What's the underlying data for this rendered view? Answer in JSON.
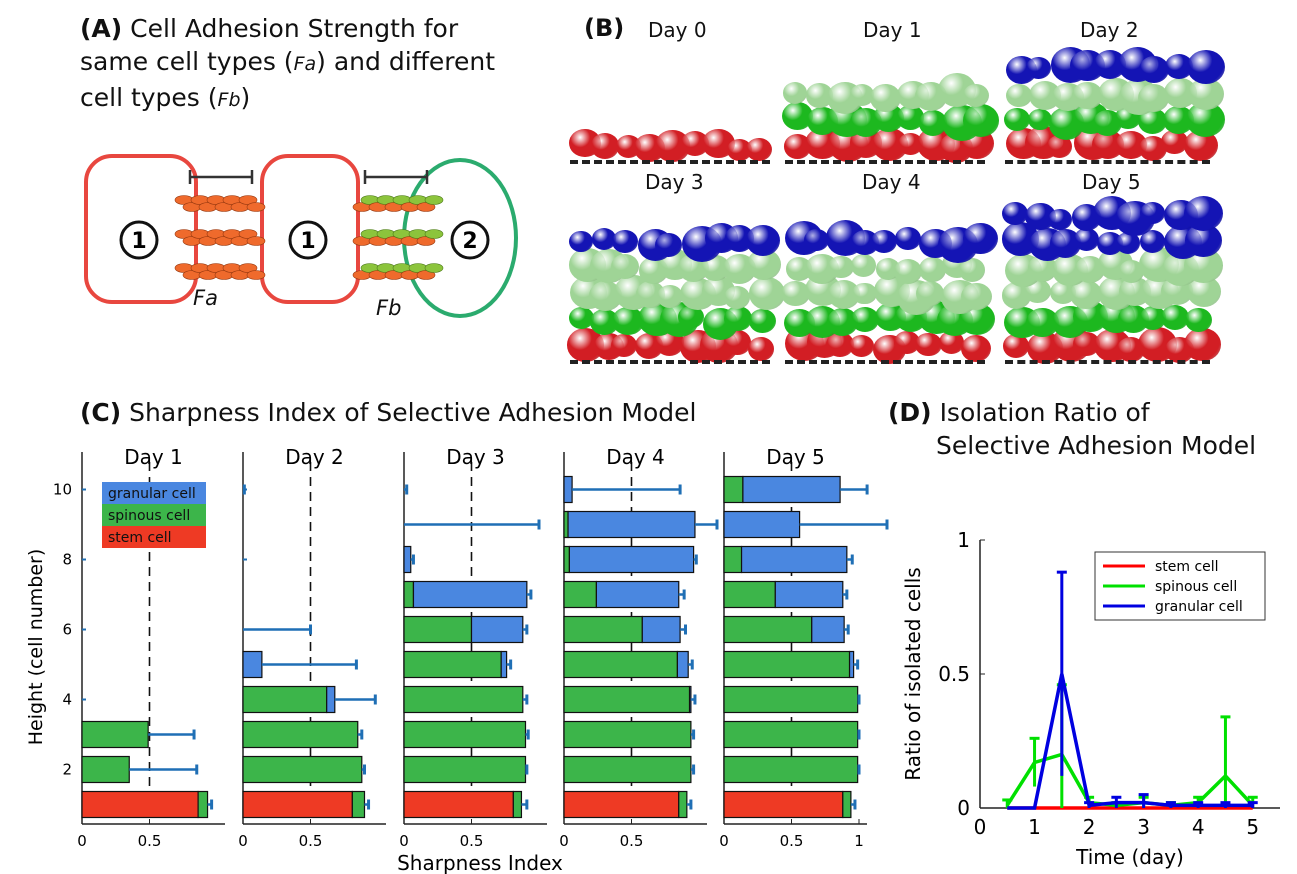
{
  "panel_a": {
    "title_bold": "(A)",
    "title_line1": "Cell Adhesion Strength for",
    "title_line2": "same cell types (",
    "fa_sym": "Fa",
    "title_line2b": ") and different",
    "title_line3": "cell types (",
    "fb_sym": "Fb",
    "title_line3b": ")",
    "cell1": "1",
    "cell2": "2",
    "label_fa": "Fa",
    "label_fb": "Fb",
    "colors": {
      "same": "#e8473f",
      "diff": "#2bab6e",
      "adh_a": "#ef6a2c",
      "adh_b": "#8cc43c"
    }
  },
  "panel_b": {
    "label": "(B)",
    "days": [
      "Day 0",
      "Day 1",
      "Day 2",
      "Day 3",
      "Day 4",
      "Day 5"
    ],
    "colors": {
      "stem": "#d21e24",
      "spinous": "#1db81f",
      "spinous_light": "#9fd496",
      "granular": "#1414b4"
    }
  },
  "panel_c": {
    "title_bold": "(C)",
    "title": "Sharpness Index of Selective Adhesion Model",
    "ylabel": "Height (cell number)",
    "xlabel": "Sharpness Index",
    "legend": [
      "granular cell",
      "spinous cell",
      "stem cell"
    ]
  },
  "panel_d": {
    "title_bold": "(D)",
    "title_line1": "Isolation Ratio of",
    "title_line2": "Selective Adhesion Model"
  },
  "chart_data": [
    {
      "type": "bar",
      "orientation": "horizontal-stacked",
      "title": "",
      "xlabel": "Sharpness Index",
      "ylabel": "Height (cell number)",
      "xlim": [
        0,
        1
      ],
      "ylim": [
        0.5,
        10.5
      ],
      "xticks": [
        "0",
        "0.5",
        "1"
      ],
      "yticks": [
        "2",
        "4",
        "6",
        "8",
        "10"
      ],
      "reference_line": 0.5,
      "colors": {
        "stem": "#ee3a24",
        "spinous": "#3cb54a",
        "granular": "#4a87e0",
        "err": "#1f6fb5"
      },
      "facets": [
        {
          "name": "Day 1",
          "bars": [
            {
              "h": 1,
              "stem": 0.86,
              "spinous": 0.07,
              "granular": 0,
              "err": 0.03
            },
            {
              "h": 2,
              "stem": 0,
              "spinous": 0.35,
              "granular": 0,
              "err": 0.5
            },
            {
              "h": 3,
              "stem": 0,
              "spinous": 0.49,
              "granular": 0,
              "err": 0.34
            }
          ]
        },
        {
          "name": "Day 2",
          "bars": [
            {
              "h": 1,
              "stem": 0.81,
              "spinous": 0.09,
              "granular": 0,
              "err": 0.03
            },
            {
              "h": 2,
              "stem": 0,
              "spinous": 0.88,
              "granular": 0,
              "err": 0.02
            },
            {
              "h": 3,
              "stem": 0,
              "spinous": 0.85,
              "granular": 0,
              "err": 0.03
            },
            {
              "h": 4,
              "stem": 0,
              "spinous": 0.62,
              "granular": 0.06,
              "err": 0.3
            },
            {
              "h": 5,
              "stem": 0,
              "spinous": 0,
              "granular": 0.14,
              "err": 0.7
            },
            {
              "h": 6,
              "stem": 0,
              "spinous": 0,
              "granular": 0,
              "err": 0.5
            },
            {
              "h": 10,
              "stem": 0,
              "spinous": 0,
              "granular": 0,
              "err": 0.01
            }
          ]
        },
        {
          "name": "Day 3",
          "bars": [
            {
              "h": 1,
              "stem": 0.81,
              "spinous": 0.06,
              "granular": 0,
              "err": 0.04
            },
            {
              "h": 2,
              "stem": 0,
              "spinous": 0.9,
              "granular": 0,
              "err": 0.01
            },
            {
              "h": 3,
              "stem": 0,
              "spinous": 0.9,
              "granular": 0,
              "err": 0.02
            },
            {
              "h": 4,
              "stem": 0,
              "spinous": 0.88,
              "granular": 0,
              "err": 0.03
            },
            {
              "h": 5,
              "stem": 0,
              "spinous": 0.72,
              "granular": 0.04,
              "err": 0.03
            },
            {
              "h": 6,
              "stem": 0,
              "spinous": 0.5,
              "granular": 0.38,
              "err": 0.03
            },
            {
              "h": 7,
              "stem": 0,
              "spinous": 0.07,
              "granular": 0.84,
              "err": 0.03
            },
            {
              "h": 8,
              "stem": 0,
              "spinous": 0,
              "granular": 0.05,
              "err": 0.02
            },
            {
              "h": 9,
              "stem": 0,
              "spinous": 0,
              "granular": 0,
              "err": 1.0
            },
            {
              "h": 10,
              "stem": 0,
              "spinous": 0,
              "granular": 0,
              "err": 0.02
            }
          ]
        },
        {
          "name": "Day 4",
          "bars": [
            {
              "h": 1,
              "stem": 0.85,
              "spinous": 0.06,
              "granular": 0,
              "err": 0.03
            },
            {
              "h": 2,
              "stem": 0,
              "spinous": 0.94,
              "granular": 0,
              "err": 0.02
            },
            {
              "h": 3,
              "stem": 0,
              "spinous": 0.94,
              "granular": 0,
              "err": 0.02
            },
            {
              "h": 4,
              "stem": 0,
              "spinous": 0.93,
              "granular": 0.01,
              "err": 0.03
            },
            {
              "h": 5,
              "stem": 0,
              "spinous": 0.84,
              "granular": 0.08,
              "err": 0.03
            },
            {
              "h": 6,
              "stem": 0,
              "spinous": 0.58,
              "granular": 0.28,
              "err": 0.04
            },
            {
              "h": 7,
              "stem": 0,
              "spinous": 0.24,
              "granular": 0.61,
              "err": 0.04
            },
            {
              "h": 8,
              "stem": 0,
              "spinous": 0.04,
              "granular": 0.92,
              "err": 0.02
            },
            {
              "h": 9,
              "stem": 0,
              "spinous": 0.03,
              "granular": 0.94,
              "err": 0.2
            },
            {
              "h": 10,
              "stem": 0,
              "spinous": 0,
              "granular": 0.06,
              "err": 0.8
            }
          ]
        },
        {
          "name": "Day 5",
          "bars": [
            {
              "h": 1,
              "stem": 0.88,
              "spinous": 0.06,
              "granular": 0,
              "err": 0.03
            },
            {
              "h": 2,
              "stem": 0,
              "spinous": 0.99,
              "granular": 0,
              "err": 0.01
            },
            {
              "h": 3,
              "stem": 0,
              "spinous": 0.99,
              "granular": 0,
              "err": 0.01
            },
            {
              "h": 4,
              "stem": 0,
              "spinous": 0.99,
              "granular": 0,
              "err": 0.01
            },
            {
              "h": 5,
              "stem": 0,
              "spinous": 0.93,
              "granular": 0.03,
              "err": 0.03
            },
            {
              "h": 6,
              "stem": 0,
              "spinous": 0.65,
              "granular": 0.24,
              "err": 0.03
            },
            {
              "h": 7,
              "stem": 0,
              "spinous": 0.38,
              "granular": 0.5,
              "err": 0.03
            },
            {
              "h": 8,
              "stem": 0,
              "spinous": 0.13,
              "granular": 0.78,
              "err": 0.04
            },
            {
              "h": 9,
              "stem": 0,
              "spinous": 0,
              "granular": 0.56,
              "err": 0.7
            },
            {
              "h": 10,
              "stem": 0,
              "spinous": 0.14,
              "granular": 0.72,
              "err": 0.2
            }
          ]
        }
      ]
    },
    {
      "type": "line",
      "title": "",
      "xlabel": "Time (day)",
      "ylabel": "Ratio of isolated cells",
      "xlim": [
        0,
        5.5
      ],
      "ylim": [
        0,
        1
      ],
      "xticks": [
        0,
        1,
        2,
        3,
        4,
        5
      ],
      "yticks": [
        0,
        0.5,
        1
      ],
      "legend_position": "top-right",
      "x": [
        0.5,
        1,
        1.5,
        2,
        2.5,
        3,
        3.5,
        4,
        4.5,
        5
      ],
      "series": [
        {
          "name": "stem cell",
          "color": "#ff0000",
          "values": [
            0,
            0,
            0,
            0,
            0,
            0,
            0,
            0,
            0,
            0
          ],
          "err": [
            0,
            0,
            0,
            0,
            0,
            0,
            0,
            0,
            0,
            0
          ]
        },
        {
          "name": "spinous cell",
          "color": "#00e000",
          "values": [
            0.01,
            0.17,
            0.2,
            0.02,
            0.01,
            0.02,
            0.01,
            0.02,
            0.12,
            0.01
          ],
          "err": [
            0.02,
            0.09,
            0.26,
            0.02,
            0.01,
            0.02,
            0.01,
            0.02,
            0.22,
            0.03
          ]
        },
        {
          "name": "granular cell",
          "color": "#0000e0",
          "values": [
            0,
            0,
            0.5,
            0.01,
            0.02,
            0.02,
            0.01,
            0.01,
            0.01,
            0.01
          ],
          "err": [
            0,
            0,
            0.38,
            0.01,
            0.02,
            0.03,
            0.01,
            0.01,
            0.01,
            0.01
          ]
        }
      ]
    }
  ]
}
